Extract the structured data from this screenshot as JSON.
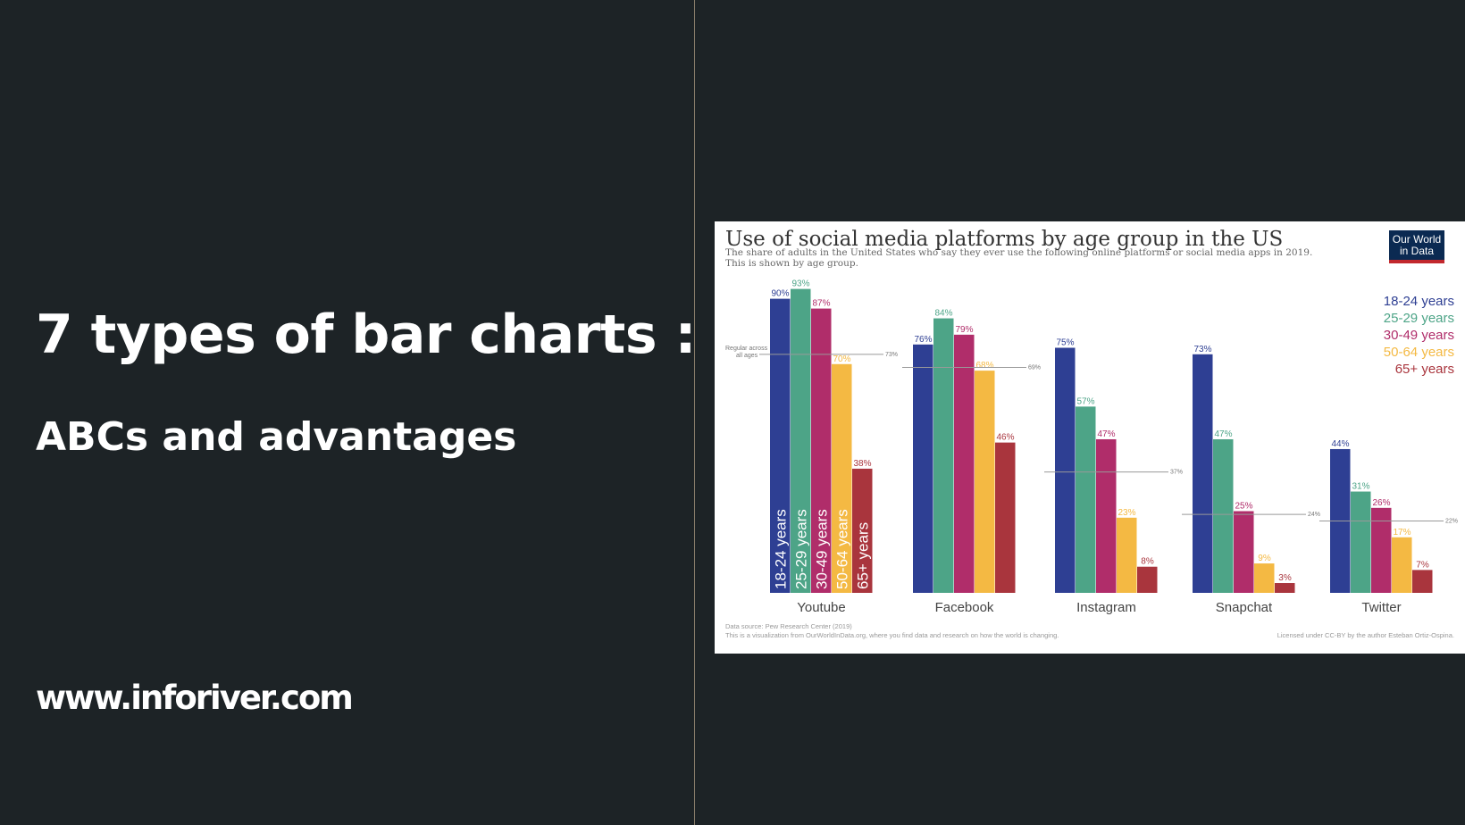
{
  "slide": {
    "title": "7 types of bar charts :",
    "subtitle": "ABCs and advantages",
    "website": "www.inforiver.com"
  },
  "chart_logo": {
    "line1": "Our World",
    "line2": "in Data"
  },
  "chart_data": {
    "type": "bar",
    "title": "Use of social media platforms by age group in the US",
    "subtitle_lines": [
      "The share of adults in the United States who say they ever use the following online platforms or social media apps in 2019.",
      "This is shown by age group."
    ],
    "categories": [
      "Youtube",
      "Facebook",
      "Instagram",
      "Snapchat",
      "Twitter"
    ],
    "series": [
      {
        "name": "18-24 years",
        "color": "#2e3f93",
        "values": [
          90,
          76,
          75,
          73,
          44
        ]
      },
      {
        "name": "25-29 years",
        "color": "#4da487",
        "values": [
          93,
          84,
          57,
          47,
          31
        ]
      },
      {
        "name": "30-49 years",
        "color": "#b02d6a",
        "values": [
          87,
          79,
          47,
          25,
          26
        ]
      },
      {
        "name": "50-64 years",
        "color": "#f4b943",
        "values": [
          70,
          68,
          23,
          9,
          17
        ]
      },
      {
        "name": "65+ years",
        "color": "#a9353d",
        "values": [
          38,
          46,
          8,
          3,
          7
        ]
      }
    ],
    "all_ages_label": "Regular across all ages",
    "all_ages_values": [
      73,
      69,
      37,
      24,
      22
    ],
    "ylim": [
      0,
      100
    ],
    "legend_position": "top-right",
    "source_lines": [
      "Data source: Pew Research Center (2019)",
      "This is a visualization from OurWorldInData.org, where you find data and research on how the world is changing."
    ],
    "license": "Licensed under CC-BY by the author Esteban Ortiz-Ospina."
  }
}
